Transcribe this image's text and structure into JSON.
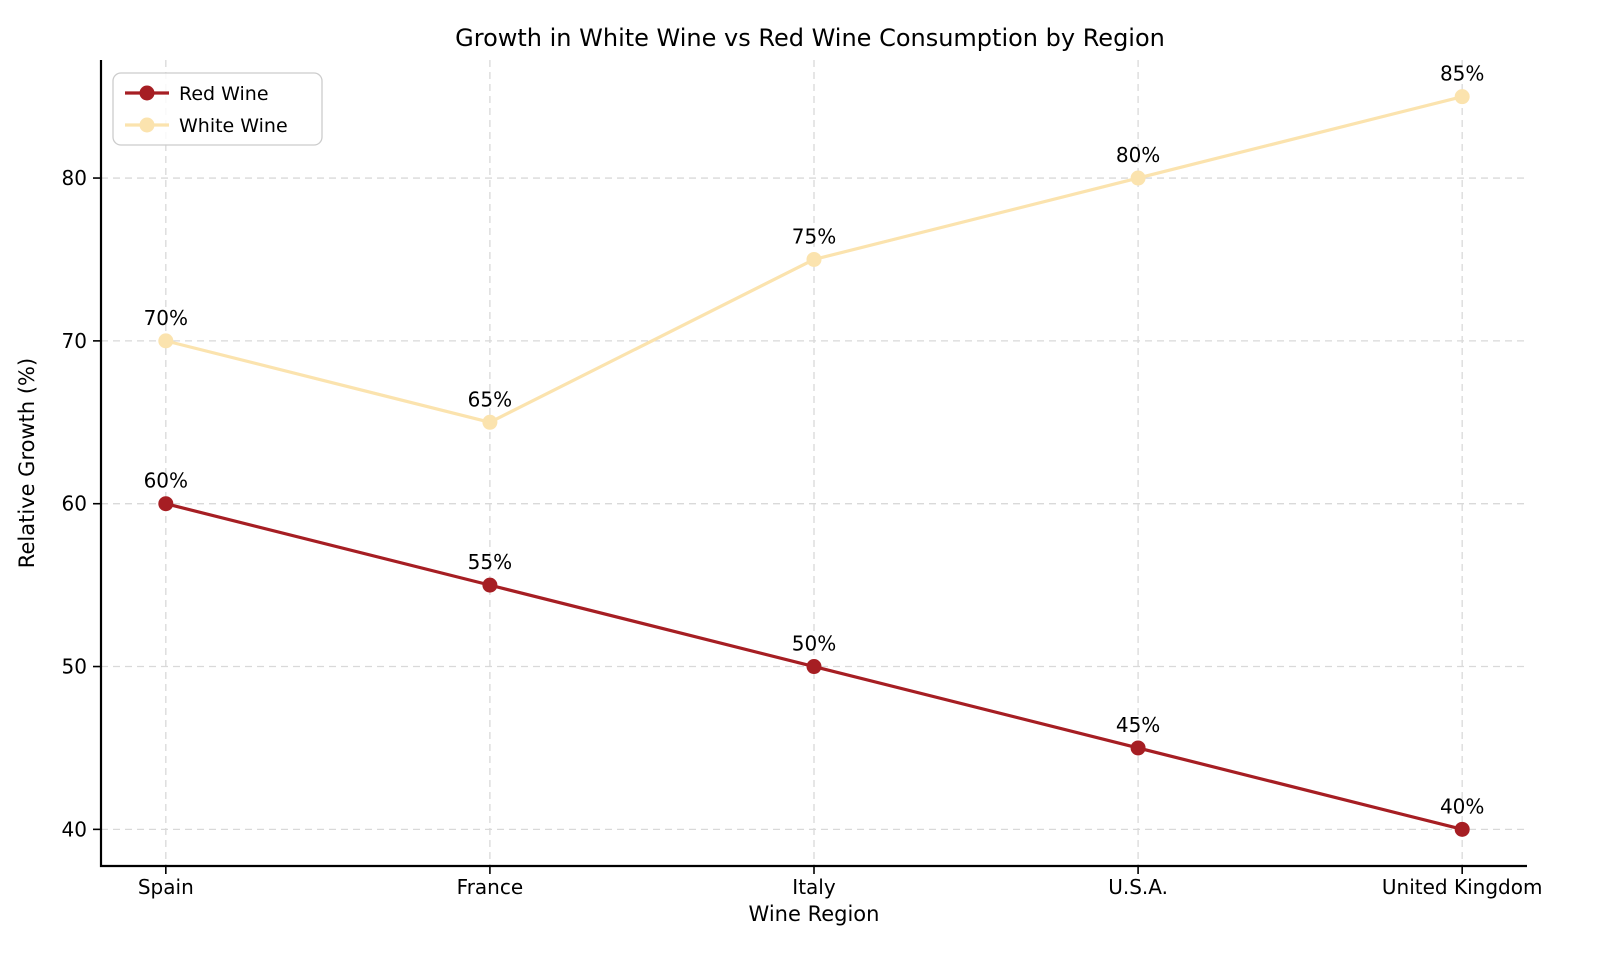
{
  "chart_data": {
    "type": "line",
    "title": "Growth in White Wine vs Red Wine Consumption by Region",
    "xlabel": "Wine Region",
    "ylabel": "Relative Growth (%)",
    "categories": [
      "Spain",
      "France",
      "Italy",
      "U.S.A.",
      "United Kingdom"
    ],
    "series": [
      {
        "name": "Red Wine",
        "values": [
          60,
          55,
          50,
          45,
          40
        ],
        "point_labels": [
          "60%",
          "55%",
          "50%",
          "45%",
          "40%"
        ],
        "color": "#A61E23",
        "label_color": "#A61E23"
      },
      {
        "name": "White Wine",
        "values": [
          70,
          65,
          75,
          80,
          85
        ],
        "point_labels": [
          "70%",
          "65%",
          "75%",
          "80%",
          "85%"
        ],
        "color": "#FBE3AE",
        "label_color": "#D2782E"
      }
    ],
    "yticks": [
      40,
      50,
      60,
      70,
      80
    ],
    "ylim": [
      37.75,
      87.25
    ],
    "x_margin": 0.2,
    "grid": true,
    "grid_color": "#D9D9D9",
    "axis_color": "#000000",
    "background": "#FFFFFF",
    "legend_position": "upper left"
  }
}
